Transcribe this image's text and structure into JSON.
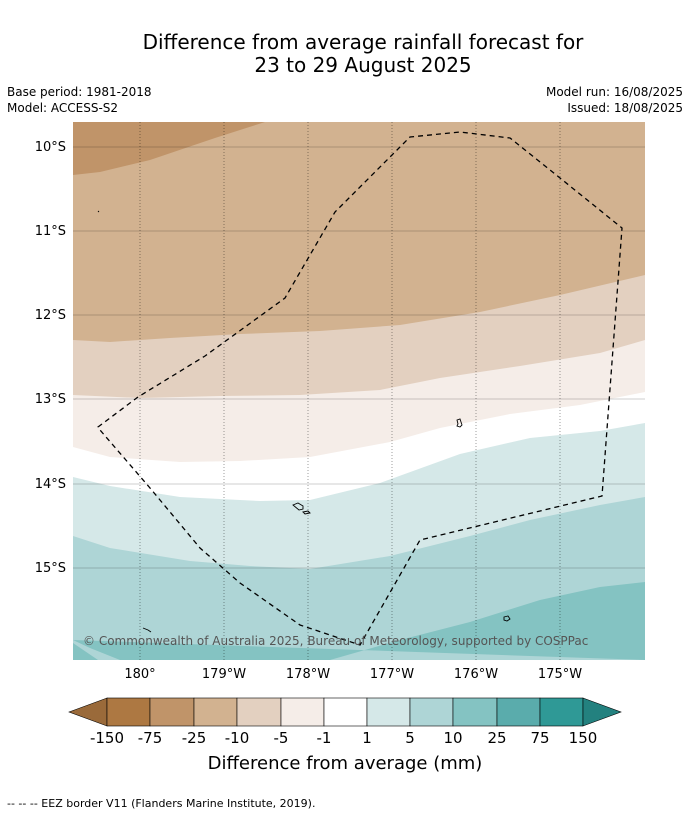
{
  "title": {
    "line1": "Difference from average rainfall forecast for",
    "line2": "23 to 29 August 2025"
  },
  "meta": {
    "base_period": "Base period: 1981-2018",
    "model": "Model: ACCESS-S2",
    "model_run": "Model run: 16/08/2025",
    "issued": "Issued: 18/08/2025"
  },
  "map": {
    "lat_labels": [
      "10°S",
      "11°S",
      "12°S",
      "13°S",
      "14°S",
      "15°S"
    ],
    "lon_labels": [
      "180°",
      "179°W",
      "178°W",
      "177°W",
      "176°W",
      "175°W"
    ],
    "copyright": "© Commonwealth of Australia 2025, Bureau of Meteorology, supported by COSPPac",
    "colors": {
      "minus_150_plus": "#9a6a3a",
      "minus_150_75": "#ad7842",
      "minus_75_25": "#c09469",
      "minus_25_10": "#d2b290",
      "minus_10_5": "#e3d0c0",
      "minus_5_1": "#f5ede8",
      "minus_1_1": "#ffffff",
      "plus_1_5": "#d5e8e8",
      "plus_5_10": "#aed5d6",
      "plus_10_25": "#84c3c2",
      "plus_25_75": "#5aacac",
      "plus_75_150": "#2f9996",
      "plus_150_plus": "#23817f"
    }
  },
  "colorbar": {
    "labels": [
      "-150",
      "-75",
      "-25",
      "-10",
      "-5",
      "-1",
      "1",
      "5",
      "10",
      "25",
      "75",
      "150"
    ],
    "title": "Difference from average (mm)"
  },
  "footer": "--  --  -- EEZ border V11 (Flanders Marine Institute, 2019)."
}
